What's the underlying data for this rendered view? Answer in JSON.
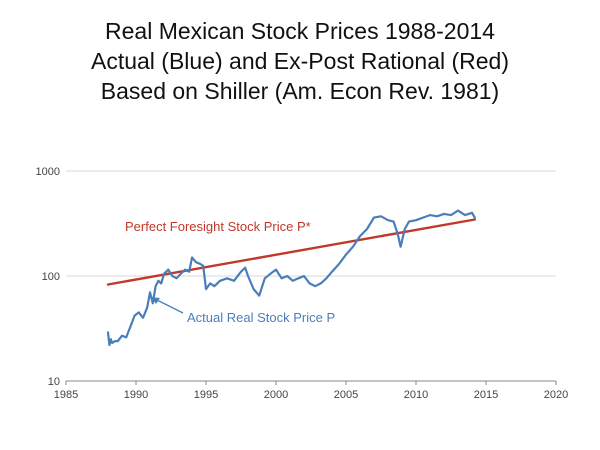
{
  "chart_data": {
    "type": "line",
    "title_lines": [
      "Real Mexican Stock Prices 1988-2014",
      "Actual (Blue) and Ex-Post Rational (Red)",
      "Based on Shiller (Am. Econ Rev. 1981)"
    ],
    "xlim": [
      1985,
      2020
    ],
    "ylim": [
      10,
      1000
    ],
    "y_scale": "log",
    "grid": "horizontal",
    "x_ticks": [
      "1985",
      "1990",
      "1995",
      "2000",
      "2005",
      "2010",
      "2015",
      "2020"
    ],
    "y_ticks": [
      "10",
      "100",
      "1000"
    ],
    "colors": {
      "actual": "#4a7ebb",
      "perfect": "#c0392b",
      "grid": "#d9d9d9",
      "axis": "#888888"
    },
    "annotations": {
      "perfect_label": "Perfect Foresight Stock Price P*",
      "actual_label": "Actual Real Stock Price P"
    },
    "series": [
      {
        "key": "perfect",
        "x": [
          1988,
          2014.2
        ],
        "y": [
          83,
          345
        ]
      },
      {
        "key": "actual",
        "x": [
          1988.0,
          1988.1,
          1988.2,
          1988.3,
          1988.5,
          1988.7,
          1989.0,
          1989.3,
          1989.6,
          1989.9,
          1990.2,
          1990.5,
          1990.8,
          1991.0,
          1991.2,
          1991.4,
          1991.6,
          1991.8,
          1992.0,
          1992.3,
          1992.6,
          1992.9,
          1993.2,
          1993.5,
          1993.8,
          1994.0,
          1994.3,
          1994.6,
          1994.8,
          1995.0,
          1995.3,
          1995.6,
          1996.0,
          1996.5,
          1997.0,
          1997.5,
          1997.8,
          1998.0,
          1998.4,
          1998.8,
          1999.2,
          1999.6,
          2000.0,
          2000.4,
          2000.8,
          2001.2,
          2001.6,
          2002.0,
          2002.4,
          2002.8,
          2003.2,
          2003.6,
          2004.0,
          2004.5,
          2005.0,
          2005.5,
          2006.0,
          2006.5,
          2007.0,
          2007.5,
          2008.0,
          2008.4,
          2008.7,
          2008.9,
          2009.2,
          2009.5,
          2010.0,
          2010.5,
          2011.0,
          2011.5,
          2012.0,
          2012.5,
          2013.0,
          2013.5,
          2014.0,
          2014.2
        ],
        "y": [
          29,
          22,
          25,
          23,
          24,
          24,
          27,
          26,
          33,
          42,
          45,
          40,
          50,
          70,
          55,
          80,
          90,
          85,
          105,
          115,
          100,
          95,
          105,
          115,
          110,
          150,
          135,
          130,
          125,
          75,
          85,
          80,
          90,
          95,
          90,
          110,
          120,
          100,
          75,
          65,
          95,
          105,
          115,
          95,
          100,
          90,
          95,
          100,
          85,
          80,
          85,
          95,
          110,
          130,
          160,
          190,
          240,
          280,
          360,
          370,
          340,
          330,
          250,
          190,
          280,
          330,
          340,
          360,
          380,
          370,
          390,
          380,
          420,
          380,
          400,
          360
        ]
      }
    ]
  }
}
